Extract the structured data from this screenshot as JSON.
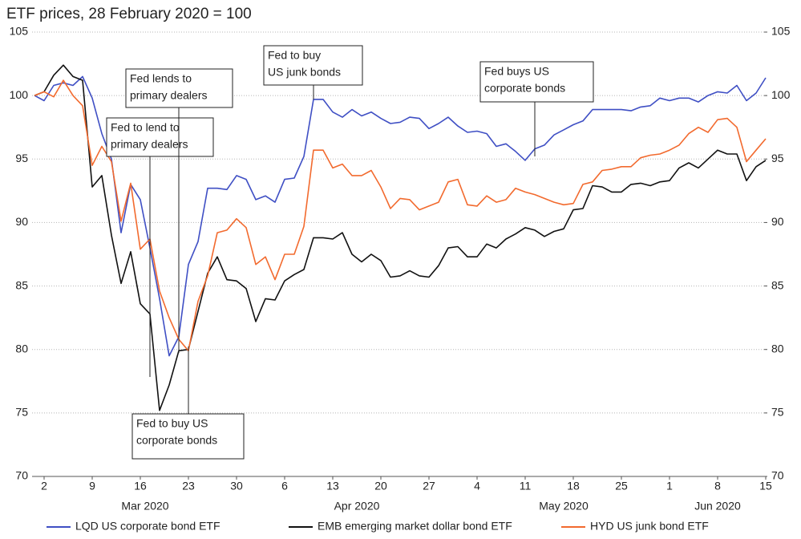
{
  "chart_data": {
    "type": "line",
    "title": "ETF prices, 28 February 2020 = 100",
    "x": [
      "2020-02-28",
      "2020-03-02",
      "2020-03-03",
      "2020-03-04",
      "2020-03-05",
      "2020-03-06",
      "2020-03-09",
      "2020-03-10",
      "2020-03-11",
      "2020-03-12",
      "2020-03-13",
      "2020-03-16",
      "2020-03-17",
      "2020-03-18",
      "2020-03-19",
      "2020-03-20",
      "2020-03-23",
      "2020-03-24",
      "2020-03-25",
      "2020-03-26",
      "2020-03-27",
      "2020-03-30",
      "2020-03-31",
      "2020-04-01",
      "2020-04-02",
      "2020-04-03",
      "2020-04-06",
      "2020-04-07",
      "2020-04-08",
      "2020-04-09",
      "2020-04-10",
      "2020-04-13",
      "2020-04-14",
      "2020-04-15",
      "2020-04-16",
      "2020-04-17",
      "2020-04-20",
      "2020-04-21",
      "2020-04-22",
      "2020-04-23",
      "2020-04-24",
      "2020-04-27",
      "2020-04-28",
      "2020-04-29",
      "2020-04-30",
      "2020-05-01",
      "2020-05-04",
      "2020-05-05",
      "2020-05-06",
      "2020-05-07",
      "2020-05-08",
      "2020-05-11",
      "2020-05-12",
      "2020-05-13",
      "2020-05-14",
      "2020-05-15",
      "2020-05-18",
      "2020-05-19",
      "2020-05-20",
      "2020-05-21",
      "2020-05-22",
      "2020-05-25",
      "2020-05-26",
      "2020-05-27",
      "2020-05-28",
      "2020-05-29",
      "2020-06-01",
      "2020-06-02",
      "2020-06-03",
      "2020-06-04",
      "2020-06-05",
      "2020-06-08",
      "2020-06-09",
      "2020-06-10",
      "2020-06-11",
      "2020-06-12",
      "2020-06-15"
    ],
    "series": [
      {
        "name": "LQD US corporate bond ETF",
        "color": "#3f4fc4",
        "values": [
          100,
          99.6,
          100.8,
          101.0,
          100.8,
          101.5,
          99.8,
          97.0,
          95.0,
          89.2,
          93.0,
          91.8,
          88.0,
          84.0,
          79.5,
          81.0,
          86.7,
          88.5,
          92.7,
          92.7,
          92.6,
          93.7,
          93.4,
          91.8,
          92.1,
          91.6,
          93.4,
          93.5,
          95.2,
          99.7,
          99.7,
          98.7,
          98.3,
          98.9,
          98.4,
          98.7,
          98.2,
          97.8,
          97.9,
          98.3,
          98.2,
          97.4,
          97.8,
          98.3,
          97.6,
          97.1,
          97.2,
          97.0,
          96.0,
          96.2,
          95.6,
          94.9,
          95.8,
          96.1,
          96.9,
          97.3,
          97.7,
          98.0,
          98.9,
          98.9,
          98.9,
          98.9,
          98.8,
          99.1,
          99.2,
          99.8,
          99.6,
          99.8,
          99.8,
          99.5,
          100.0,
          100.3,
          100.2,
          100.8,
          99.6,
          100.2,
          101.4
        ]
      },
      {
        "name": "EMB emerging market dollar bond ETF",
        "color": "#111111",
        "values": [
          100,
          100.3,
          101.6,
          102.4,
          101.5,
          101.2,
          92.8,
          93.7,
          89.0,
          85.2,
          87.7,
          83.6,
          82.8,
          75.2,
          77.2,
          79.9,
          80.0,
          83.0,
          86.0,
          87.3,
          85.5,
          85.4,
          84.8,
          82.2,
          84.0,
          83.9,
          85.4,
          85.9,
          86.3,
          88.8,
          88.8,
          88.7,
          89.2,
          87.5,
          86.9,
          87.5,
          87.0,
          85.7,
          85.8,
          86.2,
          85.8,
          85.7,
          86.6,
          88.0,
          88.1,
          87.3,
          87.3,
          88.3,
          88.0,
          88.7,
          89.1,
          89.6,
          89.4,
          88.9,
          89.3,
          89.5,
          91.0,
          91.1,
          92.9,
          92.8,
          92.4,
          92.4,
          93.0,
          93.1,
          92.9,
          93.2,
          93.3,
          94.3,
          94.7,
          94.3,
          95.0,
          95.7,
          95.4,
          95.4,
          93.3,
          94.4,
          94.9
        ]
      },
      {
        "name": "HYD US junk bond ETF",
        "color": "#f26a2e",
        "values": [
          100,
          100.3,
          99.9,
          101.2,
          100.0,
          99.2,
          94.5,
          96.0,
          94.8,
          90.1,
          93.1,
          87.9,
          88.7,
          84.6,
          82.5,
          80.8,
          79.9,
          83.8,
          85.8,
          89.2,
          89.4,
          90.3,
          89.6,
          86.7,
          87.3,
          85.5,
          87.5,
          87.5,
          89.7,
          95.7,
          95.7,
          94.3,
          94.6,
          93.7,
          93.7,
          94.1,
          92.8,
          91.1,
          91.9,
          91.8,
          91.0,
          91.3,
          91.6,
          93.2,
          93.4,
          91.4,
          91.3,
          92.1,
          91.6,
          91.8,
          92.7,
          92.4,
          92.2,
          91.9,
          91.6,
          91.4,
          91.5,
          93.0,
          93.2,
          94.1,
          94.2,
          94.4,
          94.4,
          95.1,
          95.3,
          95.4,
          95.7,
          96.1,
          97.0,
          97.5,
          97.1,
          98.1,
          98.2,
          97.5,
          94.8,
          95.7,
          96.6
        ]
      }
    ],
    "xlim": [
      "2020-02-28",
      "2020-06-15"
    ],
    "xticks": [
      {
        "value": "2020-03-02",
        "label": "2"
      },
      {
        "value": "2020-03-09",
        "label": "9"
      },
      {
        "value": "2020-03-16",
        "label": "16"
      },
      {
        "value": "2020-03-23",
        "label": "23"
      },
      {
        "value": "2020-03-30",
        "label": "30"
      },
      {
        "value": "2020-04-06",
        "label": "6"
      },
      {
        "value": "2020-04-13",
        "label": "13"
      },
      {
        "value": "2020-04-20",
        "label": "20"
      },
      {
        "value": "2020-04-27",
        "label": "27"
      },
      {
        "value": "2020-05-04",
        "label": "4"
      },
      {
        "value": "2020-05-11",
        "label": "11"
      },
      {
        "value": "2020-05-18",
        "label": "18"
      },
      {
        "value": "2020-05-25",
        "label": "25"
      },
      {
        "value": "2020-06-01",
        "label": "1"
      },
      {
        "value": "2020-06-08",
        "label": "8"
      },
      {
        "value": "2020-06-15",
        "label": "15"
      }
    ],
    "month_labels": [
      {
        "value": "2020-03",
        "label": "Mar 2020"
      },
      {
        "value": "2020-04",
        "label": "Apr 2020"
      },
      {
        "value": "2020-05",
        "label": "May 2020"
      },
      {
        "value": "2020-06",
        "label": "Jun 2020"
      }
    ],
    "ylim": [
      70,
      105
    ],
    "yticks": [
      70,
      75,
      80,
      85,
      90,
      95,
      100,
      105
    ],
    "y2lim": [
      70,
      105
    ],
    "y2ticks": [
      70,
      75,
      80,
      85,
      90,
      95,
      100,
      105
    ],
    "grid": true,
    "legend": "bottom",
    "annotations": [
      {
        "x": "2020-03-17",
        "lines": [
          "Fed to lend to",
          "primary dealers"
        ]
      },
      {
        "x": "2020-03-20",
        "lines": [
          "Fed lends to",
          "primary dealers"
        ]
      },
      {
        "x": "2020-03-23",
        "lines": [
          "Fed to buy US",
          "corporate bonds"
        ]
      },
      {
        "x": "2020-04-09",
        "lines": [
          "Fed to buy",
          "US junk bonds"
        ]
      },
      {
        "x": "2020-05-12",
        "lines": [
          "Fed buys US",
          "corporate bonds"
        ]
      }
    ]
  }
}
